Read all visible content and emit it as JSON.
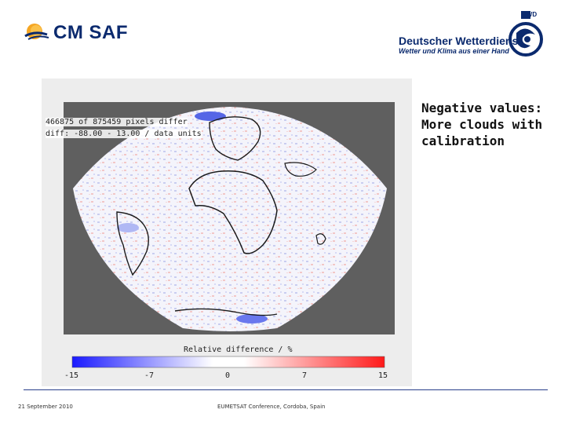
{
  "header": {
    "left_logo_text": "CM SAF",
    "right_logo_name": "Deutscher Wetterdienst",
    "right_logo_slogan": "Wetter und Klima aus einer Hand",
    "right_logo_tag": "DWD"
  },
  "figure": {
    "stats_line_1": "466875 of 875459 pixels differ",
    "stats_line_2": "diff: -88.00 - 13.00 / data units",
    "colorbar_title": "Relative difference / %",
    "colorbar_ticks": [
      "-15",
      "-7",
      "0",
      "7",
      "15"
    ],
    "colors": {
      "negative": "#1a1aff",
      "zero": "#ffffff",
      "positive": "#ff1a1a",
      "offdisk": "#5f5f5f",
      "coast": "#1a1a1a"
    }
  },
  "annotation": {
    "lines": [
      "Negative values:",
      "More clouds with",
      "calibration"
    ]
  },
  "footer": {
    "date": "21 September 2010",
    "conference": "EUMETSAT Conference, Cordoba, Spain"
  }
}
